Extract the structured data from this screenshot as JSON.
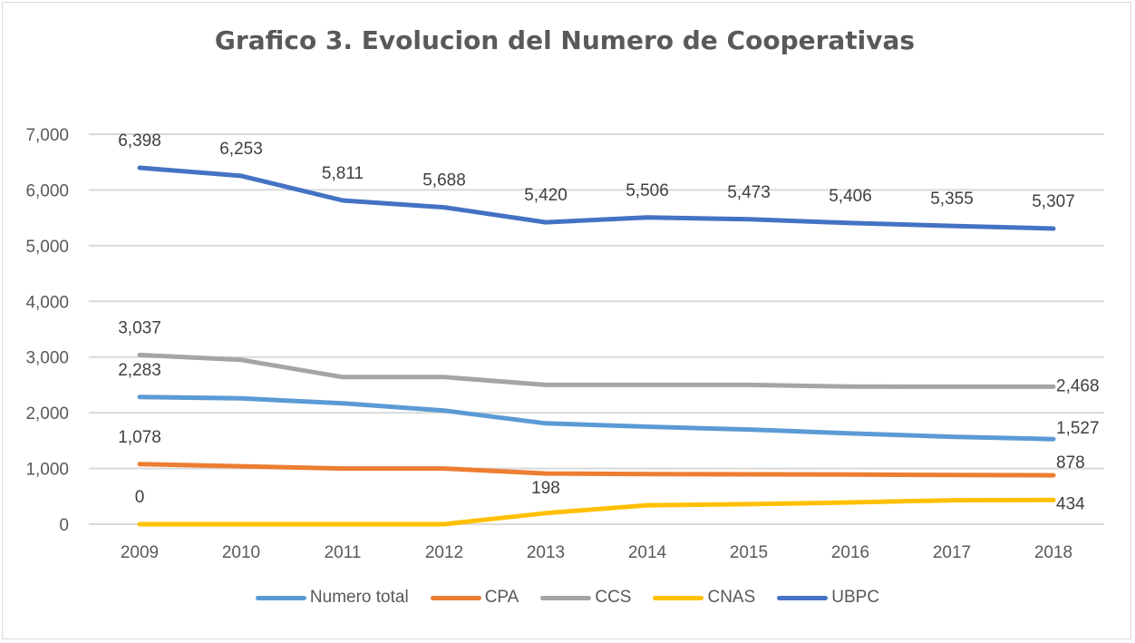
{
  "chart_data": {
    "type": "line",
    "title": "Grafico 3. Evolucion del Numero de Cooperativas",
    "xlabel": "",
    "ylabel": "",
    "x": [
      "2009",
      "2010",
      "2011",
      "2012",
      "2013",
      "2014",
      "2015",
      "2016",
      "2017",
      "2018"
    ],
    "ylim": [
      0,
      7000
    ],
    "yticks": [
      0,
      1000,
      2000,
      3000,
      4000,
      5000,
      6000,
      7000
    ],
    "ytick_labels": [
      "0",
      "1,000",
      "2,000",
      "3,000",
      "4,000",
      "5,000",
      "6,000",
      "7,000"
    ],
    "grid": "horizontal",
    "legend_position": "bottom",
    "series": [
      {
        "name": "Numero total",
        "color": "#5b9bd5",
        "values": [
          2283,
          2260,
          2170,
          2040,
          1810,
          1750,
          1700,
          1630,
          1570,
          1527
        ]
      },
      {
        "name": "CPA",
        "color": "#ed7d31",
        "values": [
          1078,
          1040,
          1000,
          1000,
          910,
          900,
          895,
          890,
          884,
          878
        ]
      },
      {
        "name": "CCS",
        "color": "#a5a5a5",
        "values": [
          3037,
          2950,
          2640,
          2640,
          2500,
          2500,
          2500,
          2470,
          2468,
          2468
        ]
      },
      {
        "name": "CNAS",
        "color": "#ffc000",
        "values": [
          0,
          0,
          0,
          0,
          198,
          340,
          360,
          390,
          430,
          434
        ]
      },
      {
        "name": "UBPC",
        "color": "#4472c4",
        "values": [
          6398,
          6253,
          5811,
          5688,
          5420,
          5506,
          5473,
          5406,
          5355,
          5307
        ]
      }
    ],
    "data_labels": [
      {
        "series": "UBPC",
        "index": 0,
        "text": "6,398"
      },
      {
        "series": "UBPC",
        "index": 1,
        "text": "6,253"
      },
      {
        "series": "UBPC",
        "index": 2,
        "text": "5,811"
      },
      {
        "series": "UBPC",
        "index": 3,
        "text": "5,688"
      },
      {
        "series": "UBPC",
        "index": 4,
        "text": "5,420"
      },
      {
        "series": "UBPC",
        "index": 5,
        "text": "5,506"
      },
      {
        "series": "UBPC",
        "index": 6,
        "text": "5,473"
      },
      {
        "series": "UBPC",
        "index": 7,
        "text": "5,406"
      },
      {
        "series": "UBPC",
        "index": 8,
        "text": "5,355"
      },
      {
        "series": "UBPC",
        "index": 9,
        "text": "5,307"
      },
      {
        "series": "CCS",
        "index": 0,
        "text": "3,037"
      },
      {
        "series": "CCS",
        "index": 9,
        "text": "2,468"
      },
      {
        "series": "Numero total",
        "index": 0,
        "text": "2,283"
      },
      {
        "series": "Numero total",
        "index": 9,
        "text": "1,527"
      },
      {
        "series": "CPA",
        "index": 0,
        "text": "1,078"
      },
      {
        "series": "CPA",
        "index": 9,
        "text": "878"
      },
      {
        "series": "CNAS",
        "index": 0,
        "text": "0"
      },
      {
        "series": "CNAS",
        "index": 4,
        "text": "198"
      },
      {
        "series": "CNAS",
        "index": 9,
        "text": "434"
      }
    ]
  }
}
